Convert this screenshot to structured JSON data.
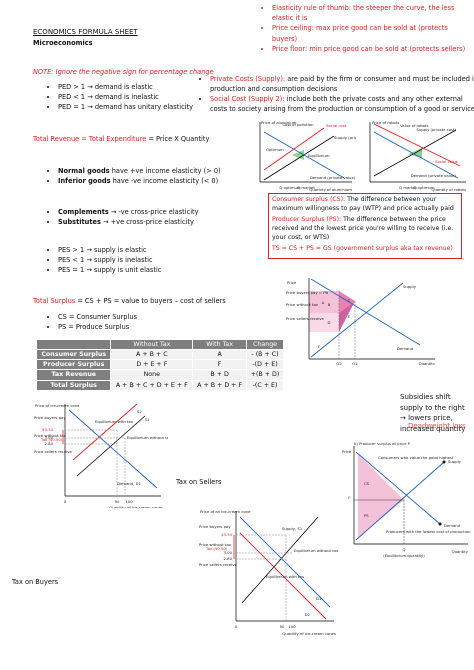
{
  "header": {
    "title": "ECONOMICS FORMULA SHEET",
    "subtitle": "Microeconomics"
  },
  "note": "NOTE: Ignore the negative sign for percentage change",
  "ped": [
    "PED > 1 → demand is elastic",
    "PED < 1 → demand is inelastic",
    "PED = 1 → demand has unitary elasticity"
  ],
  "total_revenue": {
    "label": "Total Revenue = Total Expenditure",
    "formula": "= Price X Quantity"
  },
  "income": [
    {
      "term": "Normal goods",
      "text": "have +ve income elasticity (> 0)"
    },
    {
      "term": "Inferior goods",
      "text": "have -ve income elasticity (< 0)"
    }
  ],
  "cross": [
    {
      "term": "Complements",
      "text": "→ -ve cross-price elasticity"
    },
    {
      "term": "Substitutes",
      "text": "→ +ve cross-price elasticity"
    }
  ],
  "pes": [
    "PES > 1 → supply is elastic",
    "PES < 1 → supply is inelastic",
    "PES = 1 → supply is unit elastic"
  ],
  "total_surplus": {
    "label": "Total Surplus",
    "formula": "= CS + PS = value to buyers – cost of sellers"
  },
  "surplus_defs": [
    "CS = Consumer Surplus",
    "PS = Produce Surplus"
  ],
  "table": {
    "header": [
      "Without Tax",
      "With Tax",
      "Change"
    ],
    "rows": [
      [
        "Consumer Surplus",
        "A + B + C",
        "A",
        "- (B + C)"
      ],
      [
        "Producer Surplus",
        "D + E + F",
        "F",
        "-(D + E)"
      ],
      [
        "Tax Revenue",
        "None",
        "B + D",
        "+(B + D)"
      ],
      [
        "Total Surplus",
        "A + B + C + D + E + F",
        "A + B + D + F",
        "-(C + E)"
      ]
    ]
  },
  "rules": [
    "Elasticity rule of thumb: the steeper the curve, the less elastic it is",
    "Price ceiling: max price good can be sold at (protects buyers)",
    "Price floor: min price good can be sold at (protects sellers)"
  ],
  "costs": [
    {
      "term": "Private Costs (Supply):",
      "text": "are paid by the firm or consumer and must be included in production and consumption decisions"
    },
    {
      "term": "Social Cost (Supply 2):",
      "text": "include both the private costs and any other external costs to society arising from the production or consumption of a good or service"
    }
  ],
  "definitions_box": {
    "items": [
      {
        "term": "Consumer surplus (CS):",
        "text": "The difference between your maximum willingness to pay (WTP) and price actually paid"
      },
      {
        "term": "Producer Surplus (PS):",
        "text": "The difference between the price received and the lowest price you're willing to receive (i.e. your cost, or WTS)"
      }
    ],
    "ts": "TS = CS + PS = GS (government surplus aka tax revenue)"
  },
  "captions": {
    "tax_on_sellers": "Tax on Sellers",
    "tax_on_buyers": "Tax on Buyers"
  },
  "subsidy": {
    "text": "Subsidies shift supply to the right → lowers price, increased quantity",
    "overlap": "Deadweight loss"
  },
  "diagrams": [
    {
      "labels": [
        "Price of aluminium",
        "Cost of pollution",
        "Social cost",
        "Supply (private cost)",
        "Optimum",
        "Equilibrium",
        "Demand (private value)",
        "Q optimum",
        "Q market",
        "Quantity of aluminium"
      ]
    },
    {
      "labels": [
        "Price of robots",
        "Supply (private cost)",
        "Value of robots",
        "Social value",
        "Demand (private value)",
        "Q market",
        "Q optimum",
        "Quantity of robots"
      ]
    },
    {
      "labels": [
        "Price",
        "Price buyers pay = PB",
        "Price without tax",
        "Price sellers receive",
        "Supply",
        "Demand",
        "Quantity",
        "Q2",
        "Q1",
        "A",
        "B",
        "C",
        "D",
        "E",
        "F"
      ]
    },
    {
      "labels": [
        "Price of ice-cream cone",
        "Price buyers pay",
        "$3.30",
        "3.00",
        "Price without tax",
        "2.80",
        "Price sellers receive",
        "S2",
        "S1",
        "Tax ($0.50)",
        "Equilibrium with tax",
        "Equilibrium without tax",
        "Demand, D1",
        "0",
        "90",
        "100",
        "Quantity of ice-cream cones"
      ]
    },
    {
      "labels": [
        "Price of an ice-cream cone",
        "Price buyers pay",
        "$3.30",
        "3.00",
        "Price without tax",
        "2.80",
        "Price sellers receive",
        "Supply, S1",
        "Tax ($0.50)",
        "Equilibrium without tax",
        "Equilibrium with tax",
        "D1",
        "D2",
        "0",
        "90",
        "100",
        "Quantity of ice-cream cones"
      ]
    },
    {
      "labels": [
        "b) Producer surplus at price P",
        "Price",
        "P",
        "Consumers who value the good highest",
        "CS",
        "PS",
        "Supply",
        "Demand",
        "Producers with the lowest cost of production",
        "Q",
        "(Equilibrium quantity)",
        "Quantity"
      ]
    }
  ]
}
